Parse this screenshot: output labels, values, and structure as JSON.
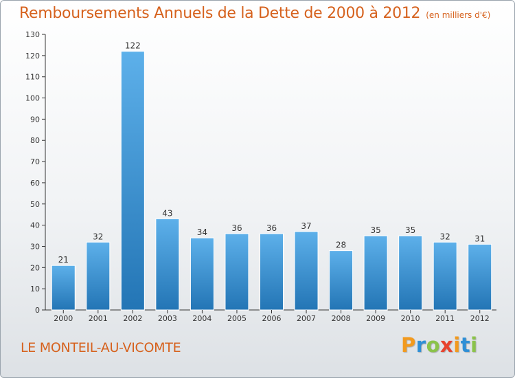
{
  "title": "Remboursements Annuels de la Dette de 2000 à 2012",
  "unit": "(en milliers d'€)",
  "commune": "LE MONTEIL-AU-VICOMTE",
  "logo": {
    "letters": [
      "P",
      "r",
      "o",
      "x",
      "i",
      "t",
      "i"
    ],
    "colors": [
      "#f29a1e",
      "#2e8fd6",
      "#8bc34a",
      "#e8432e",
      "#f29a1e",
      "#2e8fd6",
      "#8bc34a"
    ]
  },
  "colors": {
    "bar_top": "#5db0ea",
    "bar_bottom": "#2375b5",
    "axis": "#333333",
    "grid": "#d0d4d8"
  },
  "chart_data": {
    "type": "bar",
    "categories": [
      "2000",
      "2001",
      "2002",
      "2003",
      "2004",
      "2005",
      "2006",
      "2007",
      "2008",
      "2009",
      "2010",
      "2011",
      "2012"
    ],
    "values": [
      21,
      32,
      122,
      43,
      34,
      36,
      36,
      37,
      28,
      35,
      35,
      32,
      31
    ],
    "ylim": [
      0,
      130
    ],
    "yticks": [
      0,
      10,
      20,
      30,
      40,
      50,
      60,
      70,
      80,
      90,
      100,
      110,
      120,
      130
    ],
    "data_labels": true,
    "grid": false
  }
}
